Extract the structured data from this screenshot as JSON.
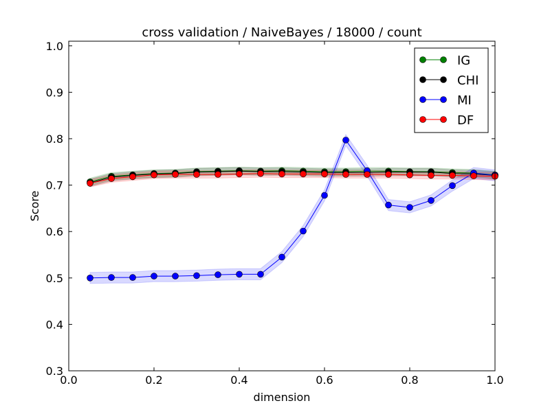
{
  "chart_data": {
    "type": "line",
    "title": "cross validation / NaiveBayes / 18000 / count",
    "xlabel": "dimension",
    "ylabel": "Score",
    "xlim": [
      0.0,
      1.0
    ],
    "ylim": [
      0.3,
      1.01
    ],
    "x_ticks": [
      "0.0",
      "0.2",
      "0.4",
      "0.6",
      "0.8",
      "1.0"
    ],
    "y_ticks": [
      "0.3",
      "0.4",
      "0.5",
      "0.6",
      "0.7",
      "0.8",
      "0.9",
      "1.0"
    ],
    "x": [
      0.05,
      0.1,
      0.15,
      0.2,
      0.25,
      0.3,
      0.35,
      0.4,
      0.45,
      0.5,
      0.55,
      0.6,
      0.65,
      0.7,
      0.75,
      0.8,
      0.85,
      0.9,
      0.95,
      1.0
    ],
    "legend_position": "top-right",
    "grid": false,
    "series": [
      {
        "name": "IG",
        "color": "#008000",
        "values": [
          0.707,
          0.719,
          0.722,
          0.725,
          0.726,
          0.729,
          0.73,
          0.731,
          0.73,
          0.731,
          0.73,
          0.729,
          0.729,
          0.73,
          0.73,
          0.729,
          0.729,
          0.727,
          0.726,
          0.722
        ],
        "band": 0.008
      },
      {
        "name": "CHI",
        "color": "#000000",
        "values": [
          0.705,
          0.717,
          0.721,
          0.724,
          0.725,
          0.728,
          0.729,
          0.73,
          0.729,
          0.729,
          0.728,
          0.727,
          0.727,
          0.727,
          0.728,
          0.728,
          0.728,
          0.725,
          0.724,
          0.721
        ],
        "band": 0.008
      },
      {
        "name": "MI",
        "color": "#0000ff",
        "values": [
          0.5,
          0.501,
          0.501,
          0.504,
          0.504,
          0.505,
          0.507,
          0.508,
          0.508,
          0.545,
          0.601,
          0.678,
          0.797,
          0.731,
          0.657,
          0.652,
          0.667,
          0.699,
          0.726,
          0.721
        ],
        "band": 0.012
      },
      {
        "name": "DF",
        "color": "#ff0000",
        "values": [
          0.704,
          0.714,
          0.718,
          0.722,
          0.723,
          0.723,
          0.723,
          0.724,
          0.725,
          0.724,
          0.724,
          0.724,
          0.723,
          0.723,
          0.723,
          0.722,
          0.721,
          0.721,
          0.72,
          0.719
        ],
        "band": 0.008
      }
    ]
  }
}
